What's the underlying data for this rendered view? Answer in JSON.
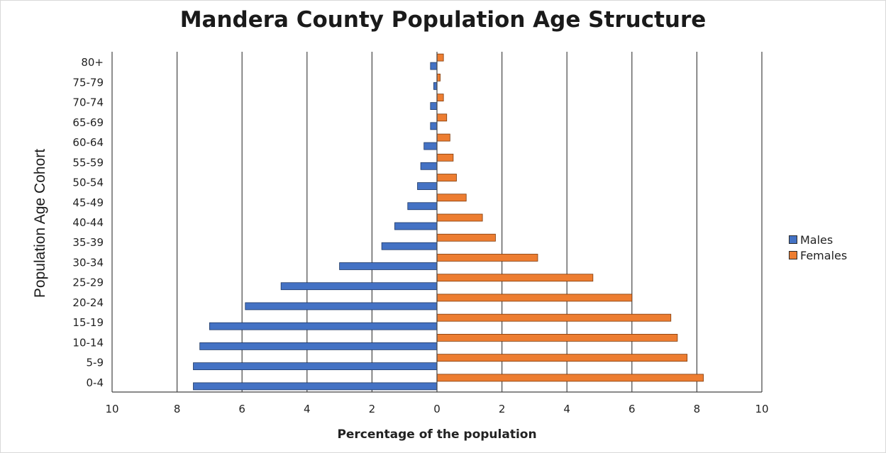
{
  "chart_data": {
    "type": "bar",
    "orientation": "horizontal",
    "title": "Mandera County Population Age Structure",
    "xlabel": "Percentage of the population",
    "ylabel": "Population Age Cohort",
    "categories": [
      "0-4",
      "5-9",
      "10-14",
      "15-19",
      "20-24",
      "25-29",
      "30-34",
      "35-39",
      "40-44",
      "45-49",
      "50-54",
      "55-59",
      "60-64",
      "65-69",
      "70-74",
      "75-79",
      "80+"
    ],
    "series": [
      {
        "name": "Males",
        "color": "#4472C4",
        "values": [
          7.5,
          7.5,
          7.3,
          7.0,
          5.9,
          4.8,
          3.0,
          1.7,
          1.3,
          0.9,
          0.6,
          0.5,
          0.4,
          0.2,
          0.2,
          0.1,
          0.2
        ]
      },
      {
        "name": "Females",
        "color": "#ED7D31",
        "values": [
          8.2,
          7.7,
          7.4,
          7.2,
          6.0,
          4.8,
          3.1,
          1.8,
          1.4,
          0.9,
          0.6,
          0.5,
          0.4,
          0.3,
          0.2,
          0.1,
          0.2
        ]
      }
    ],
    "xlim": [
      -10,
      10
    ],
    "x_ticks": [
      -10,
      -8,
      -6,
      -4,
      -2,
      0,
      2,
      4,
      6,
      8,
      10
    ],
    "x_tick_labels": [
      "10",
      "8",
      "6",
      "4",
      "2",
      "0",
      "2",
      "4",
      "6",
      "8",
      "10"
    ],
    "grid": "vertical",
    "legend_position": "right"
  }
}
